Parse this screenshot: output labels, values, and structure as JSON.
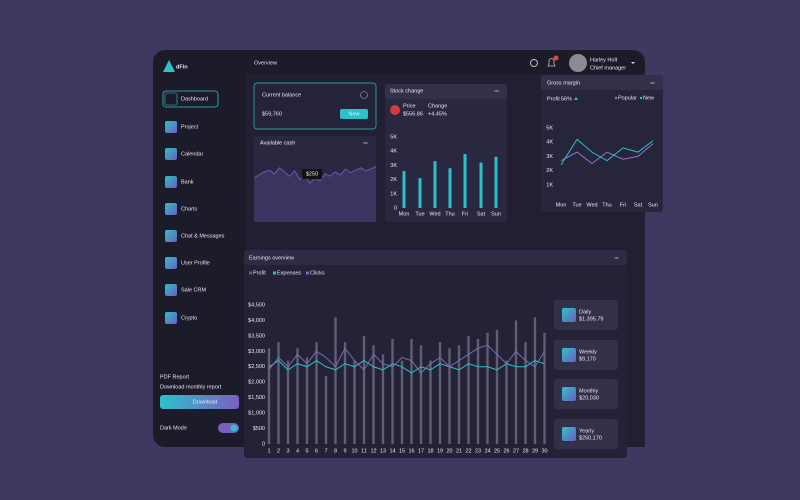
{
  "logo": "dFin",
  "nav": [
    "Dashboard",
    "Project",
    "Calendar",
    "Bank",
    "Charts",
    "Chat & Messages",
    "User Profile",
    "Sale CRM",
    "Crypto"
  ],
  "report": {
    "title": "PDF Report",
    "subtitle": "Download monthly report",
    "button": "Download"
  },
  "dark_mode": {
    "label": "Dark Mode",
    "on": true
  },
  "header": {
    "title": "Overview",
    "user": {
      "name": "Harley Holt",
      "role": "Chief manager"
    }
  },
  "balance": {
    "label": "Current balance",
    "value": "$59,760",
    "badge": "New"
  },
  "cash": {
    "title": "Available cash",
    "type": "area",
    "tooltip": "$250",
    "color": "#6a5aa6",
    "ylim": [
      0,
      100
    ],
    "values": [
      45,
      50,
      55,
      58,
      52,
      62,
      55,
      48,
      57,
      42,
      50,
      36,
      45,
      40,
      52,
      48,
      55,
      50,
      60,
      54,
      58,
      62,
      57,
      60,
      64
    ]
  },
  "stock": {
    "title": "Stock change",
    "price_label": "Price",
    "price": "$556.86",
    "change_label": "Change",
    "change": "+4.45%",
    "type": "bar",
    "color": "#2cc1c9",
    "categories": [
      "Mon",
      "Tue",
      "Wed",
      "Thu",
      "Fri",
      "Sat",
      "Sun"
    ],
    "values": [
      2600,
      2100,
      3300,
      2800,
      3800,
      3200,
      3600
    ],
    "ylim": [
      0,
      5000
    ],
    "yticks": [
      0,
      {
        "value": 1000,
        "label": "1K"
      },
      {
        "value": 2000,
        "label": "2K"
      },
      {
        "value": 3000,
        "label": "3K"
      },
      {
        "value": 4000,
        "label": "4K"
      },
      {
        "value": 5000,
        "label": "5K"
      }
    ]
  },
  "margin": {
    "title": "Gross margin",
    "profit_label": "Profit",
    "profit": "56%",
    "type": "line",
    "categories": [
      "Mon",
      "Tue",
      "Wed",
      "Thu",
      "Fri",
      "Sat",
      "Sun"
    ],
    "series": [
      {
        "name": "Popular",
        "color": "#8f73d6",
        "values": [
          2700,
          3300,
          2500,
          3300,
          2800,
          3000,
          3900
        ]
      },
      {
        "name": "New",
        "color": "#2cc1c9",
        "values": [
          2400,
          4200,
          3300,
          2700,
          3600,
          3300,
          4100
        ]
      }
    ],
    "ylim": [
      0,
      5000
    ],
    "yticks": [
      {
        "value": 1000,
        "label": "1K"
      },
      {
        "value": 2000,
        "label": "2K"
      },
      {
        "value": 3000,
        "label": "3K"
      },
      {
        "value": 4000,
        "label": "4K"
      },
      {
        "value": 5000,
        "label": "5K"
      }
    ]
  },
  "earnings": {
    "title": "Earnings overview",
    "type": "bar-line",
    "categories": [
      "1",
      "2",
      "3",
      "4",
      "5",
      "6",
      "7",
      "8",
      "9",
      "10",
      "11",
      "12",
      "13",
      "14",
      "15",
      "16",
      "17",
      "18",
      "19",
      "20",
      "21",
      "22",
      "23",
      "24",
      "25",
      "26",
      "27",
      "28",
      "29",
      "30"
    ],
    "series": [
      {
        "name": "Profit",
        "type": "bar",
        "color": "#5f5e72",
        "values": [
          3100,
          3300,
          2700,
          3100,
          2800,
          3300,
          2200,
          4100,
          3300,
          2700,
          3500,
          3200,
          2900,
          3400,
          2700,
          3400,
          3200,
          2700,
          3300,
          3100,
          3200,
          3500,
          3400,
          3600,
          3700,
          2700,
          4000,
          3300,
          4100,
          3600
        ]
      },
      {
        "name": "Expenses",
        "type": "line",
        "color": "#2cc1c9",
        "values": [
          2500,
          2700,
          2400,
          2600,
          2500,
          2700,
          2500,
          2400,
          2600,
          2500,
          2700,
          2500,
          2400,
          2600,
          2500,
          2300,
          2500,
          2400,
          2600,
          2500,
          2400,
          2600,
          2500,
          2500,
          2400,
          2600,
          2500,
          2500,
          2700,
          2600
        ]
      },
      {
        "name": "Clicks",
        "type": "line",
        "color": "#7b6bb5",
        "values": [
          2400,
          2800,
          2500,
          2900,
          2600,
          3000,
          2800,
          2500,
          3100,
          2700,
          2400,
          2900,
          2600,
          2500,
          2800,
          2700,
          2300,
          2600,
          2800,
          2500,
          2700,
          2900,
          3100,
          3200,
          2900,
          2600,
          3000,
          2700,
          2500,
          3000
        ]
      }
    ],
    "ylim": [
      0,
      4500
    ],
    "yticks": [
      0,
      {
        "value": 500,
        "label": "$500"
      },
      {
        "value": 1000,
        "label": "$1,000"
      },
      {
        "value": 1500,
        "label": "$1,500"
      },
      {
        "value": 2000,
        "label": "$2,000"
      },
      {
        "value": 2500,
        "label": "$2,500"
      },
      {
        "value": 3000,
        "label": "$3,000"
      },
      {
        "value": 3500,
        "label": "$3,500"
      },
      {
        "value": 4000,
        "label": "$4,000"
      },
      {
        "value": 4500,
        "label": "$4,500"
      }
    ]
  },
  "summary": [
    {
      "label": "Daily",
      "value": "$1,395.79"
    },
    {
      "label": "Weekly",
      "value": "$9,170"
    },
    {
      "label": "Monthly",
      "value": "$20,030"
    },
    {
      "label": "Yearly",
      "value": "$250,170"
    }
  ]
}
